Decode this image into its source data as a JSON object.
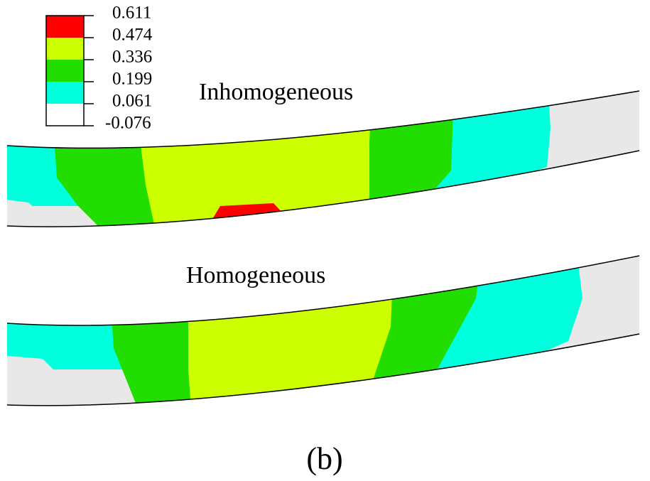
{
  "legend": {
    "labels": [
      "0.611",
      "0.474",
      "0.336",
      "0.199",
      "0.061",
      "-0.076"
    ]
  },
  "panels": [
    {
      "label": "Inhomogeneous"
    },
    {
      "label": "Homogeneous"
    }
  ],
  "caption": "(b)"
}
